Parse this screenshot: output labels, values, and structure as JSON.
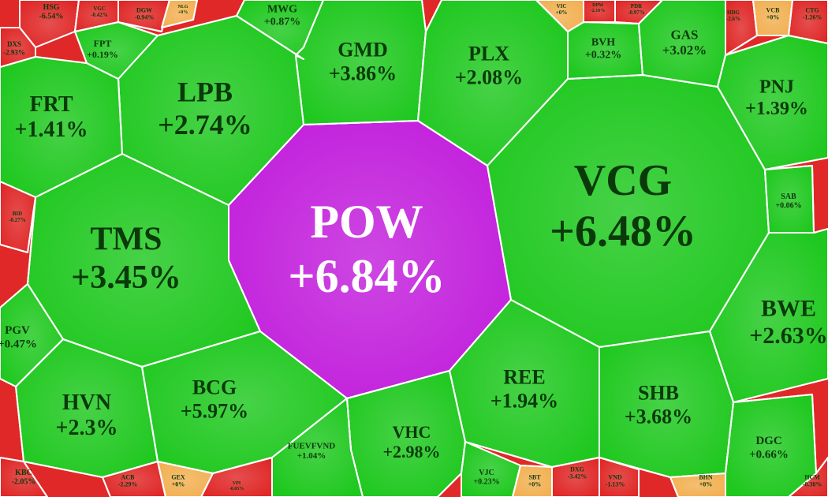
{
  "cells": [
    {
      "ticker": "POW",
      "change": "+6.84%",
      "color": "#c21fdc"
    },
    {
      "ticker": "VCG",
      "change": "+6.48%",
      "color": "#1fc81f"
    },
    {
      "ticker": "TMS",
      "change": "+3.45%",
      "color": "#1fc81f"
    },
    {
      "ticker": "LPB",
      "change": "+2.74%",
      "color": "#1fc81f"
    },
    {
      "ticker": "FRT",
      "change": "+1.41%",
      "color": "#1fc81f"
    },
    {
      "ticker": "GMD",
      "change": "+3.86%",
      "color": "#1fc81f"
    },
    {
      "ticker": "PLX",
      "change": "+2.08%",
      "color": "#1fc81f"
    },
    {
      "ticker": "BVH",
      "change": "+0.32%",
      "color": "#1fc81f"
    },
    {
      "ticker": "GAS",
      "change": "+3.02%",
      "color": "#1fc81f"
    },
    {
      "ticker": "PNJ",
      "change": "+1.39%",
      "color": "#1fc81f"
    },
    {
      "ticker": "SAB",
      "change": "+0.06%",
      "color": "#1fc81f"
    },
    {
      "ticker": "BWE",
      "change": "+2.63%",
      "color": "#1fc81f"
    },
    {
      "ticker": "SHB",
      "change": "+3.68%",
      "color": "#1fc81f"
    },
    {
      "ticker": "DGC",
      "change": "+0.66%",
      "color": "#1fc81f"
    },
    {
      "ticker": "REE",
      "change": "+1.94%",
      "color": "#1fc81f"
    },
    {
      "ticker": "VHC",
      "change": "+2.98%",
      "color": "#1fc81f"
    },
    {
      "ticker": "BCG",
      "change": "+5.97%",
      "color": "#1fc81f"
    },
    {
      "ticker": "HVN",
      "change": "+2.3%",
      "color": "#1fc81f"
    },
    {
      "ticker": "FUEVFVND",
      "change": "+1.04%",
      "color": "#1fc81f"
    },
    {
      "ticker": "MWG",
      "change": "+0.87%",
      "color": "#1fc81f"
    },
    {
      "ticker": "FPT",
      "change": "+0.19%",
      "color": "#1fc81f"
    },
    {
      "ticker": "PGV",
      "change": "+0.47%",
      "color": "#1fc81f"
    },
    {
      "ticker": "VJC",
      "change": "+0.23%",
      "color": "#1fc81f"
    },
    {
      "ticker": "HSG",
      "change": "-6.54%",
      "color": "#e02828"
    },
    {
      "ticker": "DXS",
      "change": "-2.93%",
      "color": "#e02828"
    },
    {
      "ticker": "VGC",
      "change": "-0.42%",
      "color": "#e02828"
    },
    {
      "ticker": "DGW",
      "change": "-0.94%",
      "color": "#e02828"
    },
    {
      "ticker": "NLG",
      "change": "+0%",
      "color": "#f2b052"
    },
    {
      "ticker": "VIC",
      "change": "+0%",
      "color": "#f2b052"
    },
    {
      "ticker": "DPM",
      "change": "-2.16%",
      "color": "#e02828"
    },
    {
      "ticker": "PDR",
      "change": "-0.97%",
      "color": "#e02828"
    },
    {
      "ticker": "HDG",
      "change": "-2.6%",
      "color": "#e02828"
    },
    {
      "ticker": "VCB",
      "change": "+0%",
      "color": "#f2b052"
    },
    {
      "ticker": "CTG",
      "change": "-1.26%",
      "color": "#e02828"
    },
    {
      "ticker": "BID",
      "change": "-0.27%",
      "color": "#e02828"
    },
    {
      "ticker": "KBC",
      "change": "-2.05%",
      "color": "#e02828"
    },
    {
      "ticker": "ACB",
      "change": "-2.29%",
      "color": "#e02828"
    },
    {
      "ticker": "GEX",
      "change": "+0%",
      "color": "#f2b052"
    },
    {
      "ticker": "VPI",
      "change": "-0.65%",
      "color": "#e02828"
    },
    {
      "ticker": "SBT",
      "change": "+0%",
      "color": "#f2b052"
    },
    {
      "ticker": "DXG",
      "change": "-3.42%",
      "color": "#e02828"
    },
    {
      "ticker": "VND",
      "change": "-1.13%",
      "color": "#e02828"
    },
    {
      "ticker": "BHN",
      "change": "+0%",
      "color": "#f2b052"
    },
    {
      "ticker": "HCM",
      "change": "-0.38%",
      "color": "#e02828"
    }
  ]
}
